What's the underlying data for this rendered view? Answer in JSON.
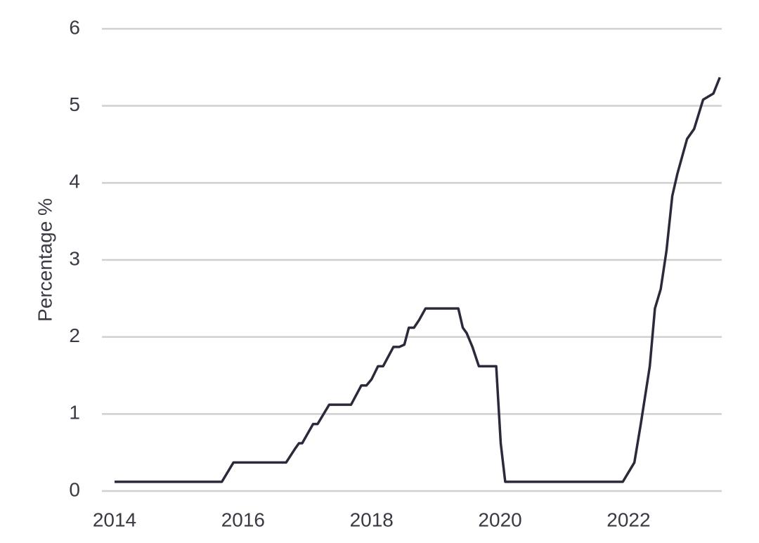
{
  "chart_data": {
    "type": "line",
    "y_label": "Percentage %",
    "x": [
      2014.0,
      2015.67,
      2015.85,
      2016.67,
      2016.81,
      2016.87,
      2016.92,
      2017.09,
      2017.16,
      2017.34,
      2017.68,
      2017.84,
      2017.92,
      2018.0,
      2018.1,
      2018.18,
      2018.34,
      2018.43,
      2018.51,
      2018.58,
      2018.66,
      2018.74,
      2018.84,
      2019.35,
      2019.42,
      2019.48,
      2019.57,
      2019.67,
      2019.94,
      2020.01,
      2020.08,
      2021.91,
      2022.09,
      2022.19,
      2022.33,
      2022.41,
      2022.5,
      2022.59,
      2022.68,
      2022.76,
      2022.83,
      2022.91,
      2023.02,
      2023.16,
      2023.32,
      2023.42
    ],
    "values": [
      0.12,
      0.12,
      0.37,
      0.37,
      0.55,
      0.62,
      0.62,
      0.87,
      0.87,
      1.12,
      1.12,
      1.37,
      1.37,
      1.45,
      1.62,
      1.62,
      1.87,
      1.87,
      1.9,
      2.12,
      2.12,
      2.22,
      2.37,
      2.37,
      2.12,
      2.05,
      1.87,
      1.62,
      1.62,
      0.62,
      0.12,
      0.12,
      0.37,
      0.87,
      1.62,
      2.37,
      2.62,
      3.12,
      3.83,
      4.12,
      4.33,
      4.57,
      4.7,
      5.08,
      5.16,
      5.37
    ],
    "color": "#2b2a3a",
    "xlim": [
      2014,
      2023.45
    ],
    "xticks": [
      2014,
      2016,
      2018,
      2020,
      2022
    ],
    "ylim": [
      0,
      6
    ],
    "yticks": [
      0,
      1,
      2,
      3,
      4,
      5,
      6
    ],
    "grid": true
  }
}
